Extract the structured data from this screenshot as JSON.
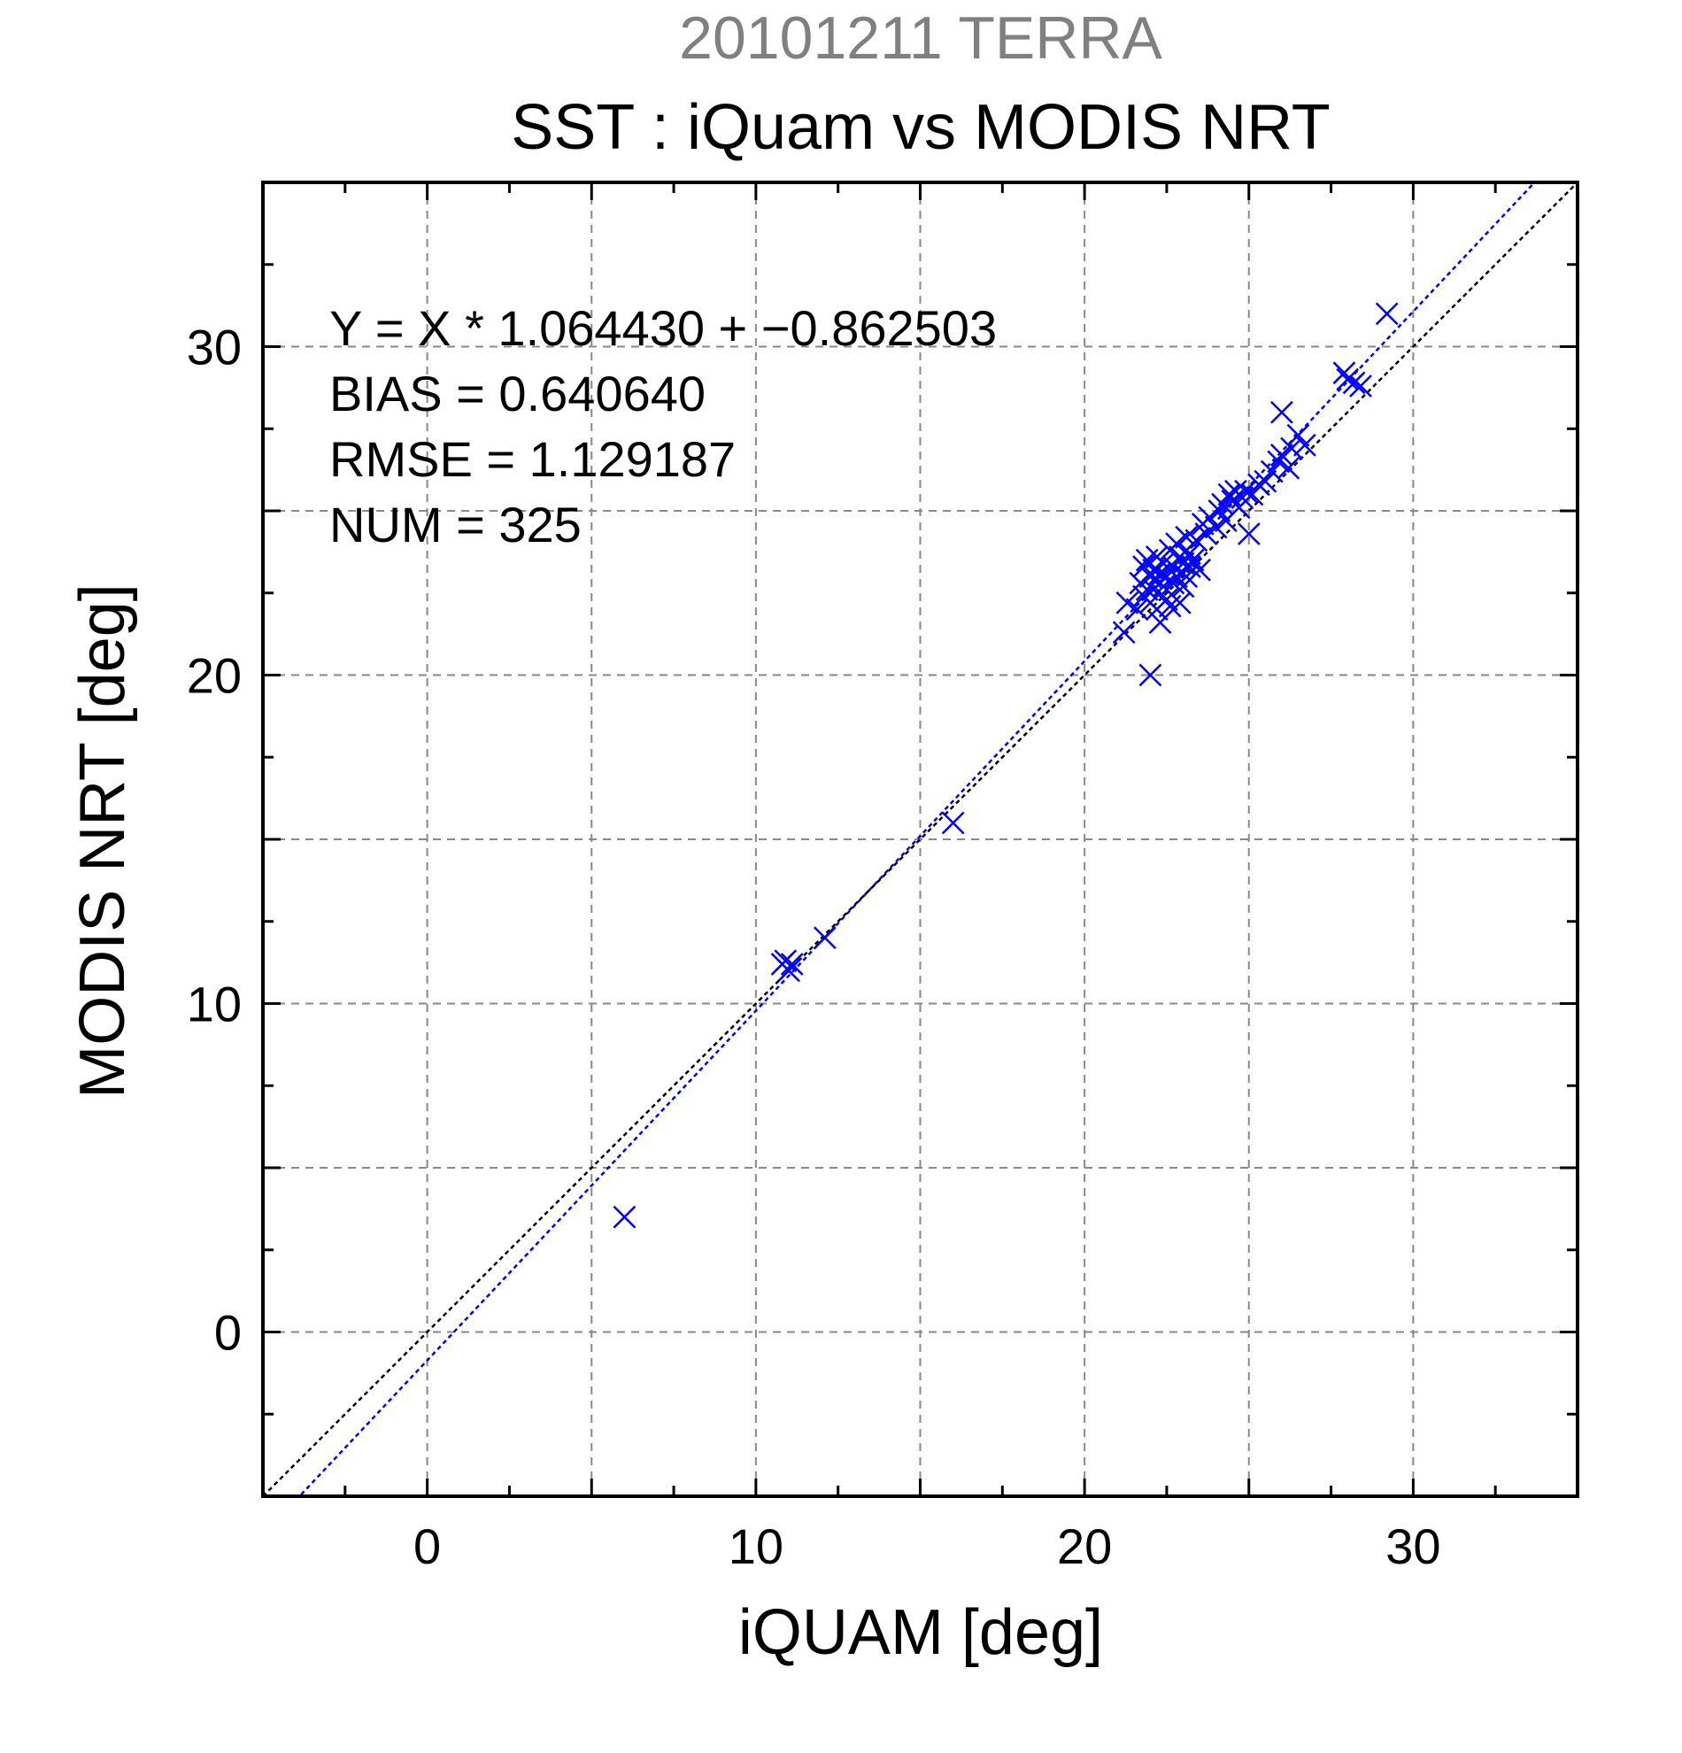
{
  "chart_data": {
    "type": "scatter",
    "title": "20101211 TERRA",
    "subtitle": "SST : iQuam vs MODIS NRT",
    "xlabel": "iQUAM [deg]",
    "ylabel": "MODIS NRT [deg]",
    "xlim": [
      -5,
      35
    ],
    "ylim": [
      -5,
      35
    ],
    "xticks": [
      0,
      10,
      20,
      30
    ],
    "yticks": [
      0,
      10,
      20,
      30
    ],
    "grid": true,
    "colors": {
      "points": "#0000ff",
      "regression_line": "#0000ff",
      "identity_line": "#000000",
      "grid": "#888888",
      "title": "#808080"
    },
    "annotations": [
      "Y = X * 1.064430 + −0.862503",
      "BIAS = 0.640640",
      "RMSE = 1.129187",
      "NUM = 325"
    ],
    "lines": [
      {
        "kind": "regression",
        "slope": 1.06443,
        "intercept": -0.862503
      },
      {
        "kind": "identity",
        "slope": 1,
        "intercept": 0
      }
    ],
    "points": [
      [
        6.0,
        3.5
      ],
      [
        10.8,
        11.2
      ],
      [
        10.9,
        11.3
      ],
      [
        11.0,
        11.0
      ],
      [
        11.1,
        11.2
      ],
      [
        12.1,
        12.0
      ],
      [
        16.0,
        15.5
      ],
      [
        21.2,
        21.3
      ],
      [
        21.3,
        22.2
      ],
      [
        21.6,
        22.0
      ],
      [
        21.7,
        22.8
      ],
      [
        21.8,
        23.3
      ],
      [
        21.8,
        22.4
      ],
      [
        21.9,
        23.5
      ],
      [
        21.9,
        22.6
      ],
      [
        22.0,
        23.0
      ],
      [
        22.0,
        22.2
      ],
      [
        22.0,
        20.0
      ],
      [
        22.1,
        23.2
      ],
      [
        22.1,
        22.6
      ],
      [
        22.2,
        23.6
      ],
      [
        22.2,
        22.9
      ],
      [
        22.2,
        22.0
      ],
      [
        22.3,
        23.1
      ],
      [
        22.3,
        21.6
      ],
      [
        22.4,
        23.4
      ],
      [
        22.4,
        22.7
      ],
      [
        22.5,
        23.0
      ],
      [
        22.5,
        22.3
      ],
      [
        22.6,
        23.8
      ],
      [
        22.6,
        22.1
      ],
      [
        22.7,
        23.3
      ],
      [
        22.7,
        22.8
      ],
      [
        22.8,
        24.0
      ],
      [
        22.8,
        23.0
      ],
      [
        22.9,
        23.6
      ],
      [
        22.9,
        22.2
      ],
      [
        23.0,
        23.4
      ],
      [
        23.0,
        22.7
      ],
      [
        23.1,
        24.2
      ],
      [
        23.1,
        23.0
      ],
      [
        23.2,
        23.7
      ],
      [
        23.2,
        23.3
      ],
      [
        23.3,
        23.5
      ],
      [
        23.4,
        24.1
      ],
      [
        23.5,
        23.2
      ],
      [
        23.6,
        24.6
      ],
      [
        23.7,
        24.3
      ],
      [
        23.8,
        24.8
      ],
      [
        24.0,
        24.5
      ],
      [
        24.1,
        25.0
      ],
      [
        24.2,
        25.2
      ],
      [
        24.3,
        24.7
      ],
      [
        24.4,
        25.5
      ],
      [
        24.5,
        25.3
      ],
      [
        24.6,
        25.6
      ],
      [
        24.7,
        25.1
      ],
      [
        24.8,
        25.4
      ],
      [
        24.9,
        25.6
      ],
      [
        25.0,
        24.3
      ],
      [
        25.1,
        25.5
      ],
      [
        25.3,
        25.8
      ],
      [
        25.5,
        25.9
      ],
      [
        25.7,
        26.2
      ],
      [
        25.9,
        26.5
      ],
      [
        26.0,
        26.7
      ],
      [
        26.0,
        28.0
      ],
      [
        26.2,
        26.3
      ],
      [
        26.3,
        26.9
      ],
      [
        26.5,
        27.3
      ],
      [
        26.7,
        27.0
      ],
      [
        27.9,
        29.2
      ],
      [
        28.0,
        29.0
      ],
      [
        28.2,
        28.9
      ],
      [
        28.4,
        28.8
      ],
      [
        29.2,
        31.0
      ]
    ]
  }
}
